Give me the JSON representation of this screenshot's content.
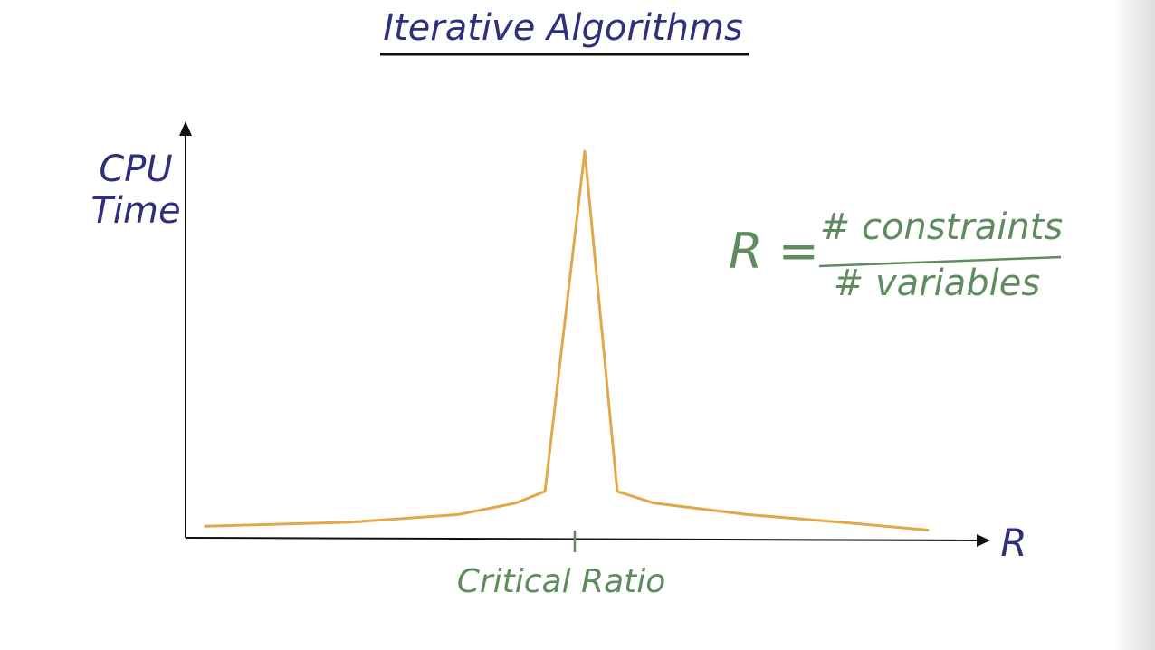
{
  "chart_data": {
    "type": "line",
    "title": "Iterative Algorithms",
    "xlabel": "R",
    "ylabel_line1": "CPU",
    "ylabel_line2": "Time",
    "x_tick_label": "Critical Ratio",
    "formula": {
      "lhs": "R =",
      "numerator": "# constraints",
      "denominator": "# variables"
    },
    "series": [
      {
        "values_normalized": [
          [
            0.0,
            0.03
          ],
          [
            0.2,
            0.04
          ],
          [
            0.35,
            0.06
          ],
          [
            0.43,
            0.09
          ],
          [
            0.47,
            0.12
          ],
          [
            0.525,
            1.0
          ],
          [
            0.57,
            0.12
          ],
          [
            0.62,
            0.09
          ],
          [
            0.75,
            0.06
          ],
          [
            0.88,
            0.04
          ],
          [
            1.0,
            0.02
          ]
        ]
      }
    ],
    "critical_ratio_x": 0.525,
    "grid": false,
    "colors": {
      "curve": "#e0a84a",
      "axes": "#111111",
      "title": "#2f2f7a",
      "annotation": "#5e8c5e"
    }
  }
}
